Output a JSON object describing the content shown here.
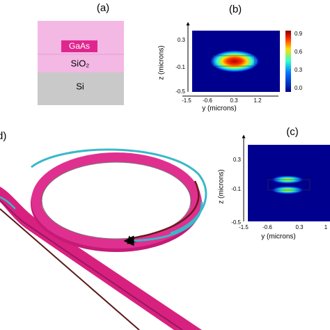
{
  "panel_a": {
    "label": "(a)",
    "layers": [
      "GaAs",
      "SiO₂",
      "Si"
    ]
  },
  "panel_b": {
    "label": "(b)",
    "z_axis_label": "z (microns)",
    "y_axis_label": "y (microns)",
    "z_ticks": [
      "0.3",
      "-0.1",
      "-0.5"
    ],
    "y_ticks": [
      "-1.5",
      "-0.6",
      "0.3",
      "1.2"
    ],
    "colorbar_ticks": [
      "0.9",
      "0.6",
      "0.3",
      "0.0"
    ]
  },
  "panel_c": {
    "label": "(c)",
    "z_axis_label": "z (microns)",
    "y_axis_label": "y (microns)",
    "z_ticks": [
      "0.3",
      "-0.1",
      "-0.5"
    ],
    "y_ticks": [
      "-1.5",
      "-0.6",
      "0.3",
      "1"
    ]
  },
  "panel_d": {
    "label": "d)"
  }
}
